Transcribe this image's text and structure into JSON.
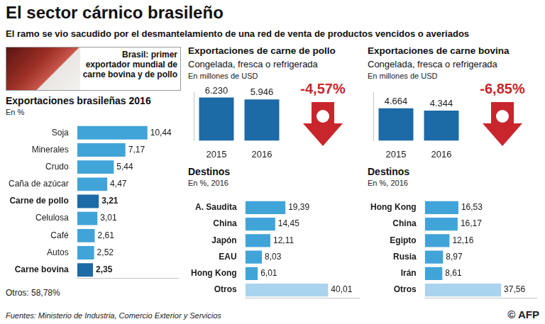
{
  "header": {
    "title": "El sector cárnico brasileño",
    "subtitle": "El ramo se vio sacudido por el desmantelamiento de una red de venta de productos vencidos o averiados"
  },
  "callout": "Brasil: primer exportador mundial de carne bovina y de pollo",
  "chart_data": [
    {
      "type": "bar",
      "orientation": "horizontal",
      "title": "Exportaciones brasileñas 2016",
      "unit": "En %",
      "categories": [
        "Soja",
        "Minerales",
        "Crudo",
        "Caña de azúcar",
        "Carne de pollo",
        "Celulosa",
        "Café",
        "Autos",
        "Carne bovina"
      ],
      "values": [
        10.44,
        7.17,
        5.44,
        4.47,
        3.21,
        3.01,
        2.61,
        2.52,
        2.35
      ],
      "value_labels": [
        "10,44",
        "7,17",
        "5,44",
        "4,47",
        "3,21",
        "3,01",
        "2,61",
        "2,52",
        "2,35"
      ],
      "color": "#41a4d8",
      "colors": [
        "#41a4d8",
        "#41a4d8",
        "#41a4d8",
        "#41a4d8",
        "#1c6aa6",
        "#41a4d8",
        "#41a4d8",
        "#41a4d8",
        "#1c6aa6"
      ],
      "xlim": [
        0,
        15
      ],
      "grid": false,
      "data_labels": true,
      "tick_labels": "y",
      "annotations": [
        "Otros: 58,78%"
      ]
    },
    {
      "type": "bar",
      "title": "Exportaciones de carne de pollo",
      "subtitle": "Congelada, fresca o refrigerada",
      "unit": "En millones de USD",
      "categories": [
        "2015",
        "2016"
      ],
      "values": [
        6230,
        5946
      ],
      "value_labels": [
        "6.230",
        "5.946"
      ],
      "color": "#1c6aa6",
      "ylim": [
        0,
        7000
      ],
      "grid": false,
      "data_labels": true,
      "tick_labels": "x",
      "annotations": [
        "-4,57%"
      ]
    },
    {
      "type": "bar",
      "orientation": "horizontal",
      "title": "Destinos",
      "unit": "En %, 2016",
      "categories": [
        "A. Saudita",
        "China",
        "Japón",
        "EAU",
        "Hong Kong",
        "Otros"
      ],
      "values": [
        19.39,
        14.45,
        12.11,
        8.03,
        6.01,
        40.01
      ],
      "value_labels": [
        "19,39",
        "14,45",
        "12,11",
        "8,03",
        "6,01",
        "40,01"
      ],
      "color": "#41a4d8",
      "colors": [
        "#41a4d8",
        "#41a4d8",
        "#41a4d8",
        "#41a4d8",
        "#41a4d8",
        "#a9d3ee"
      ],
      "xlim": [
        0,
        55
      ],
      "grid": false,
      "data_labels": true,
      "tick_labels": "y"
    },
    {
      "type": "bar",
      "title": "Exportaciones de carne bovina",
      "subtitle": "Congelada, fresca o refrigerada",
      "unit": "En millones de USD",
      "categories": [
        "2015",
        "2016"
      ],
      "values": [
        4664,
        4344
      ],
      "value_labels": [
        "4.664",
        "4.344"
      ],
      "color": "#1c6aa6",
      "ylim": [
        0,
        7000
      ],
      "grid": false,
      "data_labels": true,
      "tick_labels": "x",
      "annotations": [
        "-6,85%"
      ]
    },
    {
      "type": "bar",
      "orientation": "horizontal",
      "title": "Destinos",
      "unit": "En %, 2016",
      "categories": [
        "Hong Kong",
        "China",
        "Egipto",
        "Rusia",
        "Irán",
        "Otros"
      ],
      "values": [
        16.53,
        16.17,
        12.16,
        8.97,
        8.61,
        37.56
      ],
      "value_labels": [
        "16,53",
        "16,17",
        "12,16",
        "8,97",
        "8,61",
        "37,56"
      ],
      "color": "#41a4d8",
      "colors": [
        "#41a4d8",
        "#41a4d8",
        "#41a4d8",
        "#41a4d8",
        "#41a4d8",
        "#a9d3ee"
      ],
      "xlim": [
        0,
        55
      ],
      "grid": false,
      "data_labels": true,
      "tick_labels": "y"
    }
  ],
  "footer": {
    "source": "Fuentes: Ministerio de Industria, Comercio Exterior y Servicios",
    "credit": "© AFP"
  }
}
